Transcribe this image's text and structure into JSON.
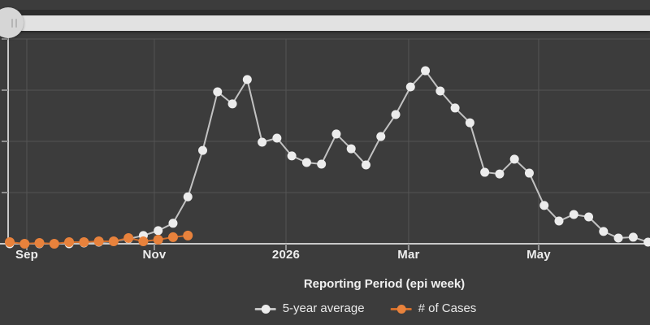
{
  "canvas": {
    "background": "#3c3c3c"
  },
  "time_slider": {
    "track_color": "#e2e2e2",
    "handle_color": "#d6d6d6",
    "grip_color": "#b5b5b5"
  },
  "chart": {
    "xaxis_title": "Reporting Period (epi week)",
    "colors": {
      "grid": "#545454",
      "axis_line": "#c9c9c9",
      "tick": "#909090",
      "tick_label": "#ededed"
    }
  },
  "chart_data": {
    "type": "line",
    "title": "",
    "xlabel": "Reporting Period (epi week)",
    "ylabel": "",
    "x_unit": "epi week (weekly points)",
    "x_ticks": [
      {
        "label": "Sep",
        "week": 1.15
      },
      {
        "label": "Nov",
        "week": 9.74
      },
      {
        "label": "2026",
        "week": 18.61
      },
      {
        "label": "Mar",
        "week": 26.87
      },
      {
        "label": "May",
        "week": 35.63
      }
    ],
    "ylim": [
      0,
      100
    ],
    "y_gridline_values": [
      0,
      25,
      50,
      75,
      100
    ],
    "y_tick_labels_visible": false,
    "grid": true,
    "legend_position": "bottom",
    "series": [
      {
        "name": "5-year average",
        "dot_color": "#ececec",
        "line_color": "#c2c2c2",
        "start_week": 0,
        "values": [
          0,
          0,
          0,
          0,
          0,
          0.4,
          0.8,
          1.2,
          2.4,
          4,
          6.4,
          10,
          22.9,
          45.6,
          74.2,
          68.3,
          80.2,
          49.6,
          51.6,
          42.9,
          39.7,
          38.9,
          53.6,
          46.4,
          38.5,
          52.4,
          63.1,
          76.6,
          84.5,
          74.6,
          66.3,
          59.1,
          34.9,
          34.1,
          41.3,
          34.5,
          18.7,
          11.1,
          14.3,
          13.1,
          6,
          2.8,
          3.2,
          0.8
        ]
      },
      {
        "name": "# of Cases",
        "dot_color": "#e8823c",
        "line_color": "#d06e2c",
        "start_week": 0,
        "values": [
          0.8,
          0,
          0.4,
          0,
          0.8,
          0.8,
          1.2,
          1.2,
          2.8,
          1.2,
          2,
          3.2,
          4
        ]
      }
    ]
  }
}
